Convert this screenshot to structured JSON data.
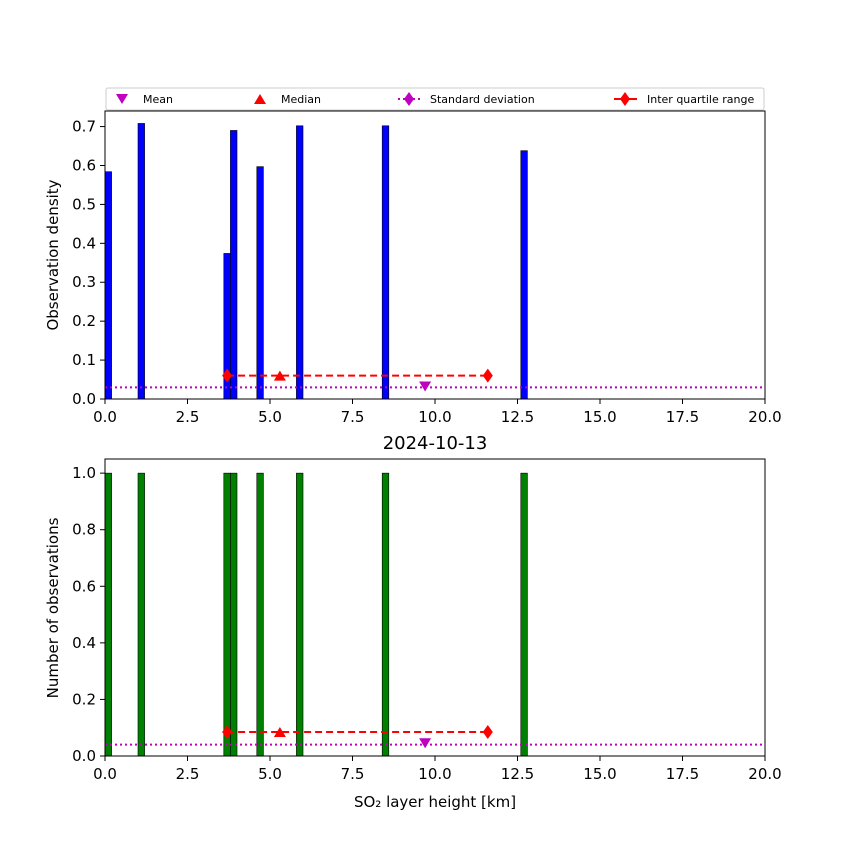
{
  "chart_data": [
    {
      "type": "bar",
      "panel": "top",
      "title": "",
      "xlabel": "",
      "ylabel": "Observation density",
      "xlim": [
        0,
        20
      ],
      "ylim": [
        0,
        0.74
      ],
      "xticks": [
        "0.0",
        "2.5",
        "5.0",
        "7.5",
        "10.0",
        "12.5",
        "15.0",
        "17.5",
        "20.0"
      ],
      "yticks": [
        "0.0",
        "0.1",
        "0.2",
        "0.3",
        "0.4",
        "0.5",
        "0.6",
        "0.7"
      ],
      "bar_color": "#0000ff",
      "bins": [
        {
          "x0": 0.0,
          "x1": 0.2,
          "value": 0.584
        },
        {
          "x0": 1.0,
          "x1": 1.2,
          "value": 0.708
        },
        {
          "x0": 3.6,
          "x1": 3.8,
          "value": 0.374
        },
        {
          "x0": 3.8,
          "x1": 4.0,
          "value": 0.69
        },
        {
          "x0": 4.6,
          "x1": 4.8,
          "value": 0.597
        },
        {
          "x0": 5.8,
          "x1": 6.0,
          "value": 0.702
        },
        {
          "x0": 8.4,
          "x1": 8.6,
          "value": 0.702
        },
        {
          "x0": 12.6,
          "x1": 12.8,
          "value": 0.638
        }
      ],
      "stats": {
        "mean": {
          "x": 9.7,
          "y": 0.032
        },
        "median": {
          "x": 5.3,
          "y": 0.06
        },
        "std_line_y": 0.03,
        "iqr": {
          "x0": 3.7,
          "x1": 11.6,
          "y": 0.06
        }
      },
      "legend": {
        "placement": "top",
        "entries": [
          "Mean",
          "Median",
          "Standard deviation",
          "Inter quartile range"
        ]
      }
    },
    {
      "type": "bar",
      "panel": "bottom",
      "title": "2024-10-13",
      "xlabel": "SO₂ layer height [km]",
      "ylabel": "Number of observations",
      "xlim": [
        0,
        20
      ],
      "ylim": [
        0,
        1.05
      ],
      "xticks": [
        "0.0",
        "2.5",
        "5.0",
        "7.5",
        "10.0",
        "12.5",
        "15.0",
        "17.5",
        "20.0"
      ],
      "yticks": [
        "0.0",
        "0.2",
        "0.4",
        "0.6",
        "0.8",
        "1.0"
      ],
      "bar_color": "#008000",
      "bins": [
        {
          "x0": 0.0,
          "x1": 0.2,
          "value": 1
        },
        {
          "x0": 1.0,
          "x1": 1.2,
          "value": 1
        },
        {
          "x0": 3.6,
          "x1": 3.8,
          "value": 1
        },
        {
          "x0": 3.8,
          "x1": 4.0,
          "value": 1
        },
        {
          "x0": 4.6,
          "x1": 4.8,
          "value": 1
        },
        {
          "x0": 5.8,
          "x1": 6.0,
          "value": 1
        },
        {
          "x0": 8.4,
          "x1": 8.6,
          "value": 1
        },
        {
          "x0": 12.6,
          "x1": 12.8,
          "value": 1
        }
      ],
      "stats": {
        "mean": {
          "x": 9.7,
          "y": 0.045
        },
        "median": {
          "x": 5.3,
          "y": 0.085
        },
        "std_line_y": 0.04,
        "iqr": {
          "x0": 3.7,
          "x1": 11.6,
          "y": 0.085
        }
      }
    }
  ],
  "colors": {
    "mean": "#bf00bf",
    "median": "#ff0000",
    "std": "#bf00bf",
    "iqr": "#ff0000"
  }
}
